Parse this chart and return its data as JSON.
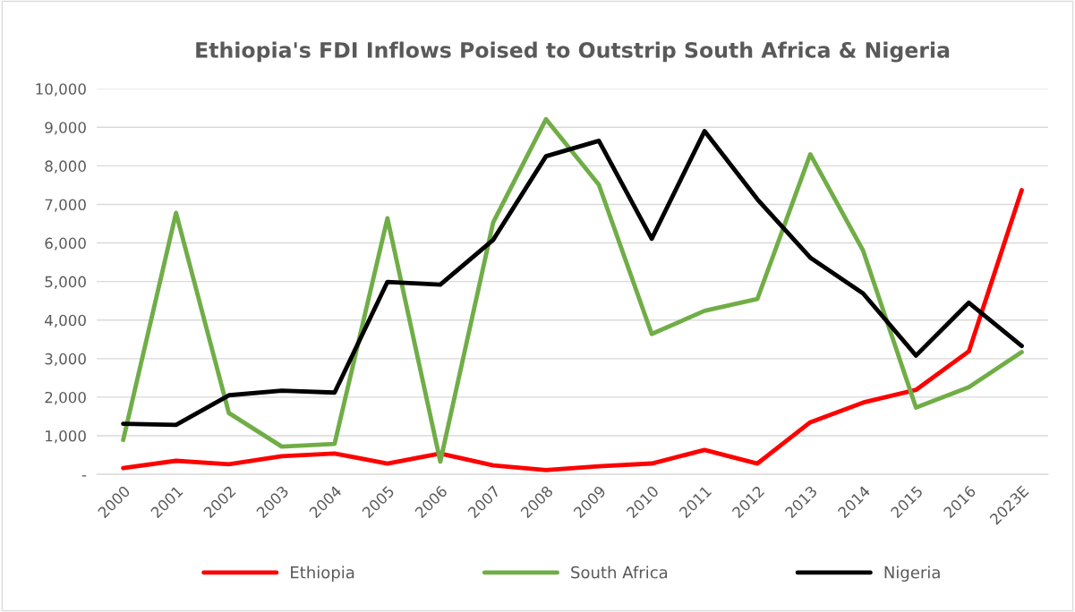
{
  "chart_data": {
    "type": "line",
    "title": "Ethiopia's FDI Inflows Poised to Outstrip South Africa & Nigeria",
    "categories": [
      "2000",
      "2001",
      "2002",
      "2003",
      "2004",
      "2005",
      "2006",
      "2007",
      "2008",
      "2009",
      "2010",
      "2011",
      "2012",
      "2013",
      "2014",
      "2015",
      "2016",
      "2023E"
    ],
    "series": [
      {
        "name": "Ethiopia",
        "color": "#ff0000",
        "values": [
          160,
          350,
          260,
          470,
          540,
          280,
          540,
          230,
          110,
          210,
          280,
          630,
          280,
          1350,
          1860,
          2190,
          3190,
          7370
        ]
      },
      {
        "name": "South Africa",
        "color": "#70ad47",
        "values": [
          890,
          6780,
          1590,
          720,
          790,
          6640,
          330,
          6530,
          9210,
          7510,
          3640,
          4240,
          4550,
          8300,
          5800,
          1730,
          2260,
          3170
        ]
      },
      {
        "name": "Nigeria",
        "color": "#000000",
        "values": [
          1310,
          1280,
          2050,
          2170,
          2120,
          4990,
          4920,
          6080,
          8250,
          8650,
          6110,
          8900,
          7130,
          5620,
          4690,
          3080,
          4450,
          3330
        ]
      }
    ],
    "ylim": [
      0,
      10000
    ],
    "yticks": [
      {
        "value": 0,
        "label": "-"
      },
      {
        "value": 1000,
        "label": "1,000"
      },
      {
        "value": 2000,
        "label": "2,000"
      },
      {
        "value": 3000,
        "label": "3,000"
      },
      {
        "value": 4000,
        "label": "4,000"
      },
      {
        "value": 5000,
        "label": "5,000"
      },
      {
        "value": 6000,
        "label": "6,000"
      },
      {
        "value": 7000,
        "label": "7,000"
      },
      {
        "value": 8000,
        "label": "8,000"
      },
      {
        "value": 9000,
        "label": "9,000"
      },
      {
        "value": 10000,
        "label": "10,000"
      }
    ],
    "grid": "y",
    "legend": "bottom",
    "marker": "none",
    "line_style": "solid"
  }
}
